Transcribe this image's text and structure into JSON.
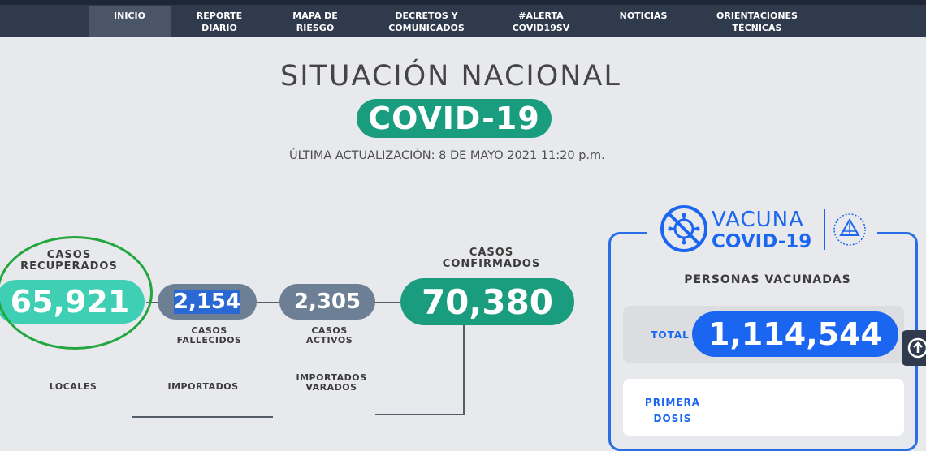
{
  "nav": {
    "items": [
      {
        "line1": "INICIO",
        "line2": ""
      },
      {
        "line1": "REPORTE",
        "line2": "DIARIO"
      },
      {
        "line1": "MAPA DE",
        "line2": "RIESGO"
      },
      {
        "line1": "DECRETOS Y",
        "line2": "COMUNICADOS"
      },
      {
        "line1": "#ALERTA",
        "line2": "COVID19SV"
      },
      {
        "line1": "NOTICIAS",
        "line2": ""
      },
      {
        "line1": "ORIENTACIONES",
        "line2": "TÉCNICAS"
      }
    ]
  },
  "header": {
    "title": "SITUACIÓN NACIONAL",
    "badge": "COVID-19",
    "updated": "ÚLTIMA ACTUALIZACIÓN: 8 DE MAYO 2021 11:20 p.m."
  },
  "stats": {
    "recuperados": {
      "label1": "CASOS",
      "label2": "RECUPERADOS",
      "value": "65,921"
    },
    "fallecidos": {
      "label1": "CASOS",
      "label2": "FALLECIDOS",
      "value": "2,154"
    },
    "activos": {
      "label1": "CASOS",
      "label2": "ACTIVOS",
      "value": "2,305"
    },
    "confirmados": {
      "label1": "CASOS",
      "label2": "CONFIRMADOS",
      "value": "70,380"
    }
  },
  "breakdown": {
    "locales": "LOCALES",
    "importados": "IMPORTADOS",
    "importados_varados_1": "IMPORTADOS",
    "importados_varados_2": "VARADOS"
  },
  "vaccine": {
    "word1": "VACUNA",
    "word2": "COVID-19",
    "heading": "PERSONAS VACUNADAS",
    "total_label": "TOTAL",
    "total_value": "1,114,544",
    "first_dose_1": "PRIMERA",
    "first_dose_2": "DOSIS"
  },
  "colors": {
    "teal": "#1a9d7e",
    "mint": "#3fcfb4",
    "slate": "#6d7f94",
    "blue": "#1a66f0",
    "nav": "#2f3a4c",
    "highlight": "#2a68d4",
    "annotation_green": "#22a63e"
  },
  "icons": {
    "virus": "virus-crossed-icon",
    "emblem": "national-emblem-icon",
    "scroll": "arrow-up-icon"
  }
}
